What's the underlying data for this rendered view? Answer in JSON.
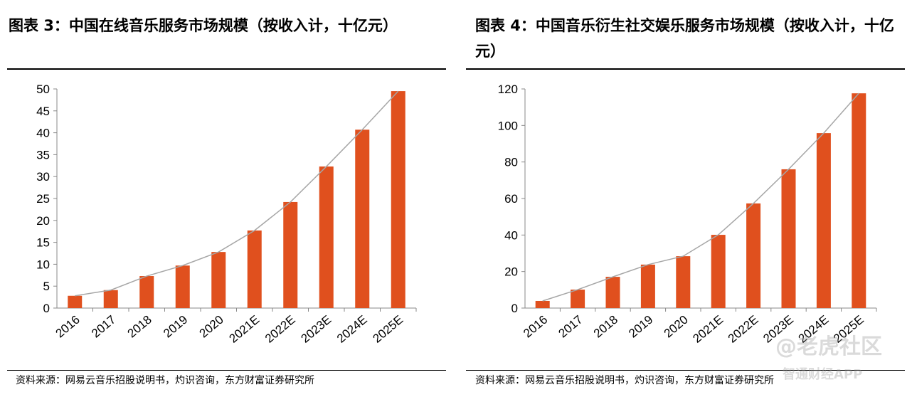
{
  "chart_data": [
    {
      "type": "bar",
      "title": "图表 3：中国在线音乐服务市场规模（按收入计，十亿元）",
      "categories": [
        "2016",
        "2017",
        "2018",
        "2019",
        "2020",
        "2021E",
        "2022E",
        "2023E",
        "2024E",
        "2025E"
      ],
      "values": [
        2.8,
        4.1,
        7.3,
        9.7,
        12.8,
        17.7,
        24.2,
        32.3,
        40.7,
        49.5
      ],
      "color": "#e0501e",
      "line_color": "#a6a6a6",
      "ylim": [
        0,
        50
      ],
      "yticks": [
        0,
        5,
        10,
        15,
        20,
        25,
        30,
        35,
        40,
        45,
        50
      ],
      "source": "资料来源：网易云音乐招股说明书，灼识咨询，东方财富证券研究所"
    },
    {
      "type": "bar",
      "title": "图表 4：中国音乐衍生社交娱乐服务市场规模（按收入计，十亿元）",
      "categories": [
        "2016",
        "2017",
        "2018",
        "2019",
        "2020",
        "2021E",
        "2022E",
        "2023E",
        "2024E",
        "2025E"
      ],
      "values": [
        3.9,
        10.1,
        17.1,
        23.8,
        28.4,
        40.1,
        57.3,
        76.0,
        95.8,
        117.6
      ],
      "color": "#e0501e",
      "line_color": "#a6a6a6",
      "ylim": [
        0,
        120
      ],
      "yticks": [
        0,
        20,
        40,
        60,
        80,
        100,
        120
      ],
      "source": "资料来源：网易云音乐招股说明书，灼识咨询，东方财富证券研究所"
    }
  ],
  "watermarks": [
    "@老虎社区",
    "智通财经APP"
  ]
}
